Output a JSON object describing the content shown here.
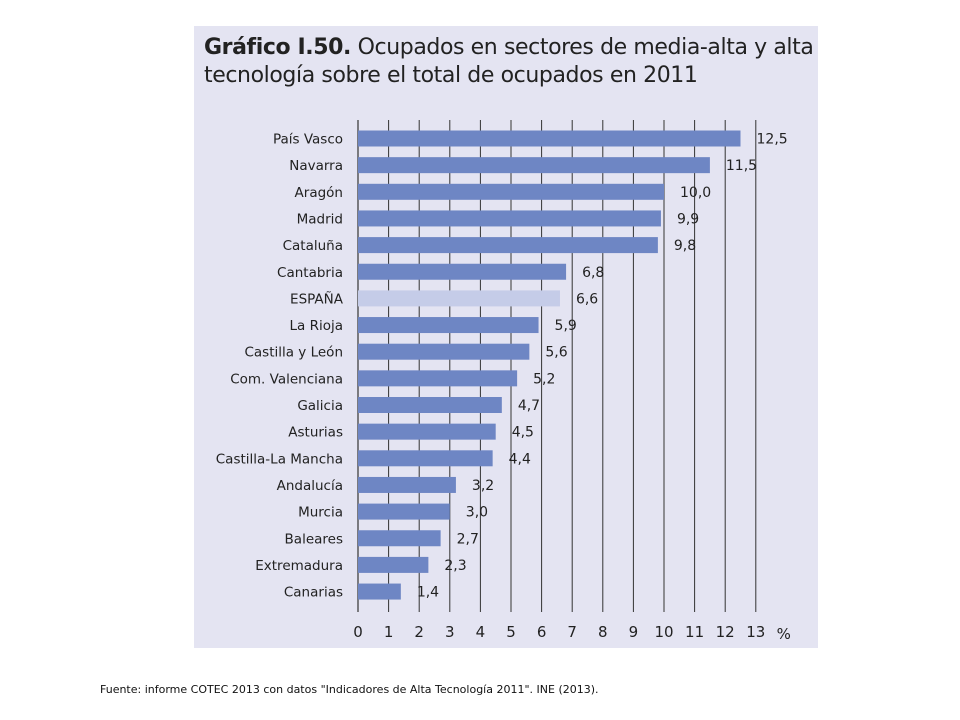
{
  "figure": {
    "title_bold": "Gráfico I.50.",
    "title_rest": " Ocupados en sectores de media-alta y alta tecnología sobre el total de ocupados en 2011",
    "source_note": "Fuente: informe COTEC 2013 con datos \"Indicadores de Alta Tecnología 2011\". INE (2013)."
  },
  "colors": {
    "bar": "#6e86c4",
    "highlight_bar": "#c5cce8",
    "panel": "#e4e4f2",
    "grid": "#333333"
  },
  "chart_data": {
    "type": "bar",
    "orientation": "horizontal",
    "title": "Gráfico I.50. Ocupados en sectores de media-alta y alta tecnología sobre el total de ocupados en 2011",
    "xlabel": "%",
    "ylabel": "",
    "xlim": [
      0,
      13
    ],
    "x_ticks": [
      "0",
      "1",
      "2",
      "3",
      "4",
      "5",
      "6",
      "7",
      "8",
      "9",
      "10",
      "11",
      "12",
      "13"
    ],
    "grid": "vertical",
    "highlight": "ESPAÑA",
    "categories": [
      "País Vasco",
      "Navarra",
      "Aragón",
      "Madrid",
      "Cataluña",
      "Cantabria",
      "ESPAÑA",
      "La Rioja",
      "Castilla y León",
      "Com. Valenciana",
      "Galicia",
      "Asturias",
      "Castilla-La Mancha",
      "Andalucía",
      "Murcia",
      "Baleares",
      "Extremadura",
      "Canarias"
    ],
    "values": [
      12.5,
      11.5,
      10.0,
      9.9,
      9.8,
      6.8,
      6.6,
      5.9,
      5.6,
      5.2,
      4.7,
      4.5,
      4.4,
      3.2,
      3.0,
      2.7,
      2.3,
      1.4
    ],
    "value_labels": [
      "12,5",
      "11,5",
      "10,0",
      "9,9",
      "9,8",
      "6,8",
      "6,6",
      "5,9",
      "5,6",
      "5,2",
      "4,7",
      "4,5",
      "4,4",
      "3,2",
      "3,0",
      "2,7",
      "2,3",
      "1,4"
    ]
  }
}
